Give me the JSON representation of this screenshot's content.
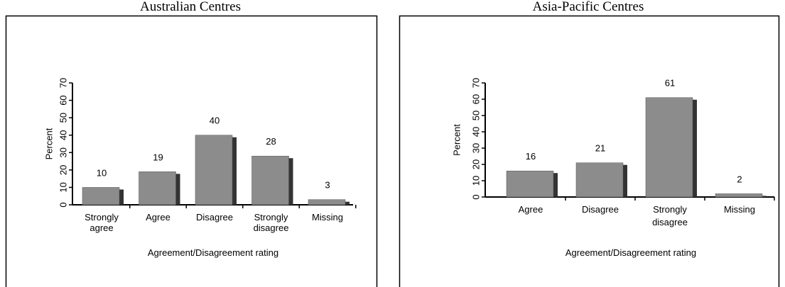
{
  "chart_data": [
    {
      "type": "bar",
      "title": "Australian Centres",
      "x_label": "Agreement/Disagreement rating",
      "y_label": "Percent",
      "categories": [
        "Strongly agree",
        "Agree",
        "Disagree",
        "Strongly disagree",
        "Missing"
      ],
      "values": [
        10,
        19,
        40,
        28,
        3
      ],
      "color": "#8c8c8c",
      "ylim": [
        0,
        70
      ],
      "yticks": [
        0,
        10,
        20,
        30,
        40,
        50,
        60,
        70
      ]
    },
    {
      "type": "bar",
      "title": "Asia-Pacific Centres",
      "x_label": "Agreement/Disagreement rating",
      "y_label": "Percent",
      "categories": [
        "Agree",
        "Disagree",
        "Strongly disagree",
        "Missing"
      ],
      "values": [
        16,
        21,
        61,
        2
      ],
      "color": "#8c8c8c",
      "ylim": [
        0,
        70
      ],
      "yticks": [
        0,
        10,
        20,
        30,
        40,
        50,
        60,
        70
      ]
    }
  ]
}
